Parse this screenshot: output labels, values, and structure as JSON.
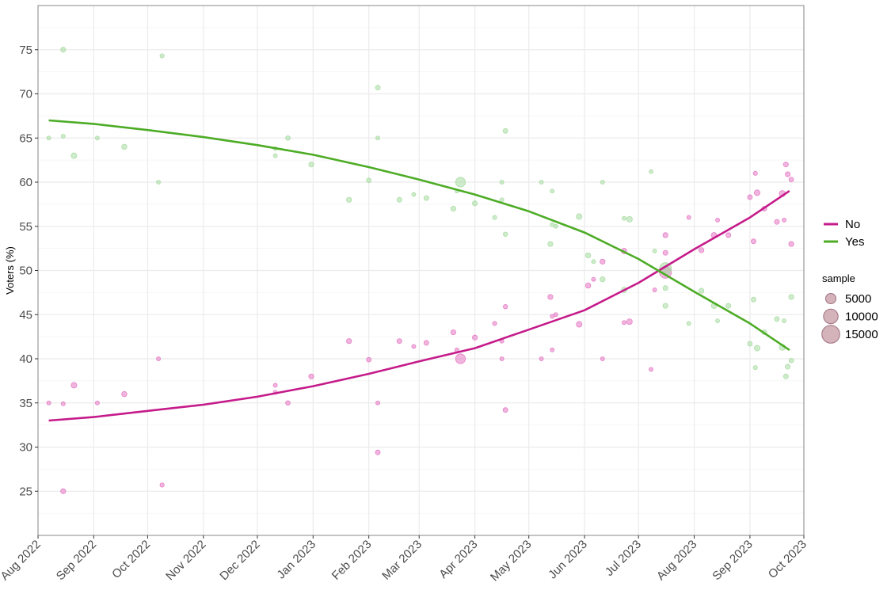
{
  "chart_data": {
    "type": "scatter",
    "ylabel": "Voters (%)",
    "xlabel": "",
    "ylim": [
      20,
      80
    ],
    "xlim": [
      "2022-08-01",
      "2023-10-01"
    ],
    "y_ticks": [
      25,
      30,
      35,
      40,
      45,
      50,
      55,
      60,
      65,
      70,
      75
    ],
    "x_ticks": [
      {
        "date": "2022-08-01",
        "label": "Aug 2022"
      },
      {
        "date": "2022-09-01",
        "label": "Sep 2022"
      },
      {
        "date": "2022-10-01",
        "label": "Oct 2022"
      },
      {
        "date": "2022-11-01",
        "label": "Nov 2022"
      },
      {
        "date": "2022-12-01",
        "label": "Dec 2022"
      },
      {
        "date": "2023-01-01",
        "label": "Jan 2023"
      },
      {
        "date": "2023-02-01",
        "label": "Feb 2023"
      },
      {
        "date": "2023-03-01",
        "label": "Mar 2023"
      },
      {
        "date": "2023-04-01",
        "label": "Apr 2023"
      },
      {
        "date": "2023-05-01",
        "label": "May 2023"
      },
      {
        "date": "2023-06-01",
        "label": "Jun 2023"
      },
      {
        "date": "2023-07-01",
        "label": "Jul 2023"
      },
      {
        "date": "2023-08-01",
        "label": "Aug 2023"
      },
      {
        "date": "2023-09-01",
        "label": "Sep 2023"
      },
      {
        "date": "2023-10-01",
        "label": "Oct 2023"
      }
    ],
    "grid": true,
    "legend_placement": "right",
    "series": [
      {
        "name": "No",
        "color": "#c51b8a",
        "point_color": "#e377c2",
        "trend": [
          [
            "2022-08-07",
            33.0
          ],
          [
            "2022-09-01",
            33.4
          ],
          [
            "2022-10-01",
            34.1
          ],
          [
            "2022-11-01",
            34.8
          ],
          [
            "2022-12-01",
            35.7
          ],
          [
            "2023-01-01",
            36.9
          ],
          [
            "2023-02-01",
            38.3
          ],
          [
            "2023-03-01",
            39.7
          ],
          [
            "2023-04-01",
            41.2
          ],
          [
            "2023-05-01",
            43.3
          ],
          [
            "2023-06-01",
            45.5
          ],
          [
            "2023-07-01",
            48.6
          ],
          [
            "2023-08-01",
            52.4
          ],
          [
            "2023-09-01",
            56.0
          ],
          [
            "2023-09-23",
            59.0
          ]
        ],
        "points": [
          {
            "x": "2022-08-07",
            "y": 35,
            "size": 1000
          },
          {
            "x": "2022-08-15",
            "y": 34.9,
            "size": 1000
          },
          {
            "x": "2022-08-15",
            "y": 25,
            "size": 1600
          },
          {
            "x": "2022-08-21",
            "y": 37,
            "size": 2000
          },
          {
            "x": "2022-09-03",
            "y": 35,
            "size": 1000
          },
          {
            "x": "2022-09-18",
            "y": 36,
            "size": 1700
          },
          {
            "x": "2022-10-07",
            "y": 40,
            "size": 1000
          },
          {
            "x": "2022-10-09",
            "y": 25.7,
            "size": 1100
          },
          {
            "x": "2022-12-11",
            "y": 37,
            "size": 1000
          },
          {
            "x": "2022-12-11",
            "y": 36.2,
            "size": 1000
          },
          {
            "x": "2022-12-18",
            "y": 35,
            "size": 1300
          },
          {
            "x": "2022-12-31",
            "y": 38,
            "size": 1600
          },
          {
            "x": "2023-01-21",
            "y": 42,
            "size": 1600
          },
          {
            "x": "2023-02-01",
            "y": 39.9,
            "size": 1400
          },
          {
            "x": "2023-02-06",
            "y": 35,
            "size": 1000
          },
          {
            "x": "2023-02-06",
            "y": 29.4,
            "size": 1400
          },
          {
            "x": "2023-02-18",
            "y": 42,
            "size": 1500
          },
          {
            "x": "2023-02-26",
            "y": 41.4,
            "size": 1000
          },
          {
            "x": "2023-03-05",
            "y": 41.8,
            "size": 1500
          },
          {
            "x": "2023-03-20",
            "y": 43,
            "size": 1600
          },
          {
            "x": "2023-03-22",
            "y": 41,
            "size": 1000
          },
          {
            "x": "2023-03-24",
            "y": 40,
            "size": 6000
          },
          {
            "x": "2023-04-01",
            "y": 42.4,
            "size": 1600
          },
          {
            "x": "2023-04-12",
            "y": 44,
            "size": 1100
          },
          {
            "x": "2023-04-16",
            "y": 40,
            "size": 1000
          },
          {
            "x": "2023-04-16",
            "y": 42,
            "size": 1000
          },
          {
            "x": "2023-04-18",
            "y": 45.9,
            "size": 1200
          },
          {
            "x": "2023-04-18",
            "y": 34.2,
            "size": 1400
          },
          {
            "x": "2023-05-08",
            "y": 40,
            "size": 1000
          },
          {
            "x": "2023-05-13",
            "y": 47,
            "size": 1600
          },
          {
            "x": "2023-05-14",
            "y": 44.8,
            "size": 1000
          },
          {
            "x": "2023-05-16",
            "y": 45,
            "size": 1000
          },
          {
            "x": "2023-05-14",
            "y": 41,
            "size": 1000
          },
          {
            "x": "2023-05-29",
            "y": 43.9,
            "size": 2000
          },
          {
            "x": "2023-06-03",
            "y": 48.3,
            "size": 1700
          },
          {
            "x": "2023-06-06",
            "y": 49,
            "size": 1000
          },
          {
            "x": "2023-06-11",
            "y": 51,
            "size": 1600
          },
          {
            "x": "2023-06-11",
            "y": 40,
            "size": 1000
          },
          {
            "x": "2023-06-23",
            "y": 52.2,
            "size": 1800
          },
          {
            "x": "2023-06-23",
            "y": 44.1,
            "size": 1000
          },
          {
            "x": "2023-06-26",
            "y": 44.2,
            "size": 2000
          },
          {
            "x": "2023-07-08",
            "y": 38.8,
            "size": 1000
          },
          {
            "x": "2023-07-10",
            "y": 47.8,
            "size": 1000
          },
          {
            "x": "2023-07-16",
            "y": 54,
            "size": 1600
          },
          {
            "x": "2023-07-16",
            "y": 52,
            "size": 1500
          },
          {
            "x": "2023-07-16",
            "y": 49.8,
            "size": 9000
          },
          {
            "x": "2023-07-29",
            "y": 56,
            "size": 1000
          },
          {
            "x": "2023-08-05",
            "y": 52.3,
            "size": 1600
          },
          {
            "x": "2023-08-12",
            "y": 54,
            "size": 1800
          },
          {
            "x": "2023-08-14",
            "y": 55.7,
            "size": 1000
          },
          {
            "x": "2023-08-20",
            "y": 54,
            "size": 1500
          },
          {
            "x": "2023-09-01",
            "y": 58.3,
            "size": 1400
          },
          {
            "x": "2023-09-03",
            "y": 53.3,
            "size": 1400
          },
          {
            "x": "2023-09-04",
            "y": 61,
            "size": 1100
          },
          {
            "x": "2023-09-05",
            "y": 58.8,
            "size": 2000
          },
          {
            "x": "2023-09-09",
            "y": 57,
            "size": 1500
          },
          {
            "x": "2023-09-16",
            "y": 55.5,
            "size": 1500
          },
          {
            "x": "2023-09-19",
            "y": 58.7,
            "size": 2300
          },
          {
            "x": "2023-09-20",
            "y": 55.7,
            "size": 1000
          },
          {
            "x": "2023-09-21",
            "y": 62,
            "size": 1500
          },
          {
            "x": "2023-09-22",
            "y": 60.9,
            "size": 1500
          },
          {
            "x": "2023-09-24",
            "y": 60.3,
            "size": 1300
          },
          {
            "x": "2023-09-24",
            "y": 53,
            "size": 1600
          }
        ]
      },
      {
        "name": "Yes",
        "color": "#4dac26",
        "point_color": "#a6dba0",
        "trend": [
          [
            "2022-08-07",
            67.0
          ],
          [
            "2022-09-01",
            66.6
          ],
          [
            "2022-10-01",
            65.9
          ],
          [
            "2022-11-01",
            65.1
          ],
          [
            "2022-12-01",
            64.2
          ],
          [
            "2023-01-01",
            63.1
          ],
          [
            "2023-02-01",
            61.7
          ],
          [
            "2023-03-01",
            60.3
          ],
          [
            "2023-04-01",
            58.6
          ],
          [
            "2023-05-01",
            56.7
          ],
          [
            "2023-06-01",
            54.3
          ],
          [
            "2023-07-01",
            51.3
          ],
          [
            "2023-08-01",
            47.6
          ],
          [
            "2023-09-01",
            44.0
          ],
          [
            "2023-09-23",
            41.0
          ]
        ],
        "points": [
          {
            "x": "2022-08-07",
            "y": 65,
            "size": 1000
          },
          {
            "x": "2022-08-15",
            "y": 65.2,
            "size": 1000
          },
          {
            "x": "2022-08-15",
            "y": 75,
            "size": 1600
          },
          {
            "x": "2022-08-21",
            "y": 63,
            "size": 2000
          },
          {
            "x": "2022-09-03",
            "y": 65,
            "size": 1000
          },
          {
            "x": "2022-09-18",
            "y": 64,
            "size": 1700
          },
          {
            "x": "2022-10-07",
            "y": 60,
            "size": 1000
          },
          {
            "x": "2022-10-09",
            "y": 74.3,
            "size": 1100
          },
          {
            "x": "2022-12-11",
            "y": 63.8,
            "size": 1000
          },
          {
            "x": "2022-12-11",
            "y": 63,
            "size": 1000
          },
          {
            "x": "2022-12-18",
            "y": 65,
            "size": 1300
          },
          {
            "x": "2022-12-31",
            "y": 62,
            "size": 1600
          },
          {
            "x": "2023-01-21",
            "y": 58,
            "size": 1600
          },
          {
            "x": "2023-02-01",
            "y": 60.2,
            "size": 1400
          },
          {
            "x": "2023-02-06",
            "y": 65,
            "size": 1000
          },
          {
            "x": "2023-02-06",
            "y": 70.7,
            "size": 1400
          },
          {
            "x": "2023-02-18",
            "y": 58,
            "size": 1500
          },
          {
            "x": "2023-02-26",
            "y": 58.6,
            "size": 1000
          },
          {
            "x": "2023-03-05",
            "y": 58.2,
            "size": 1500
          },
          {
            "x": "2023-03-20",
            "y": 57,
            "size": 1600
          },
          {
            "x": "2023-03-22",
            "y": 59,
            "size": 1000
          },
          {
            "x": "2023-03-24",
            "y": 60,
            "size": 6000
          },
          {
            "x": "2023-04-01",
            "y": 57.6,
            "size": 1600
          },
          {
            "x": "2023-04-12",
            "y": 56,
            "size": 1100
          },
          {
            "x": "2023-04-16",
            "y": 60,
            "size": 1000
          },
          {
            "x": "2023-04-16",
            "y": 58,
            "size": 1000
          },
          {
            "x": "2023-04-18",
            "y": 54.1,
            "size": 1200
          },
          {
            "x": "2023-04-18",
            "y": 65.8,
            "size": 1400
          },
          {
            "x": "2023-05-08",
            "y": 60,
            "size": 1000
          },
          {
            "x": "2023-05-13",
            "y": 53,
            "size": 1600
          },
          {
            "x": "2023-05-14",
            "y": 55.2,
            "size": 1000
          },
          {
            "x": "2023-05-16",
            "y": 55,
            "size": 1000
          },
          {
            "x": "2023-05-14",
            "y": 59,
            "size": 1000
          },
          {
            "x": "2023-05-29",
            "y": 56.1,
            "size": 2000
          },
          {
            "x": "2023-06-03",
            "y": 51.7,
            "size": 1700
          },
          {
            "x": "2023-06-06",
            "y": 51,
            "size": 1000
          },
          {
            "x": "2023-06-11",
            "y": 49,
            "size": 1600
          },
          {
            "x": "2023-06-11",
            "y": 60,
            "size": 1000
          },
          {
            "x": "2023-06-23",
            "y": 47.8,
            "size": 1800
          },
          {
            "x": "2023-06-23",
            "y": 55.9,
            "size": 1000
          },
          {
            "x": "2023-06-26",
            "y": 55.8,
            "size": 2000
          },
          {
            "x": "2023-07-08",
            "y": 61.2,
            "size": 1000
          },
          {
            "x": "2023-07-10",
            "y": 52.2,
            "size": 1000
          },
          {
            "x": "2023-07-16",
            "y": 46,
            "size": 1600
          },
          {
            "x": "2023-07-16",
            "y": 48,
            "size": 1500
          },
          {
            "x": "2023-07-16",
            "y": 50.2,
            "size": 9000
          },
          {
            "x": "2023-07-29",
            "y": 44,
            "size": 1000
          },
          {
            "x": "2023-08-05",
            "y": 47.7,
            "size": 1600
          },
          {
            "x": "2023-08-12",
            "y": 46,
            "size": 1800
          },
          {
            "x": "2023-08-14",
            "y": 44.3,
            "size": 1000
          },
          {
            "x": "2023-08-20",
            "y": 46,
            "size": 1500
          },
          {
            "x": "2023-09-01",
            "y": 41.7,
            "size": 1400
          },
          {
            "x": "2023-09-03",
            "y": 46.7,
            "size": 1400
          },
          {
            "x": "2023-09-04",
            "y": 39,
            "size": 1100
          },
          {
            "x": "2023-09-05",
            "y": 41.2,
            "size": 2000
          },
          {
            "x": "2023-09-09",
            "y": 43,
            "size": 1500
          },
          {
            "x": "2023-09-16",
            "y": 44.5,
            "size": 1500
          },
          {
            "x": "2023-09-19",
            "y": 41.3,
            "size": 2300
          },
          {
            "x": "2023-09-20",
            "y": 44.3,
            "size": 1000
          },
          {
            "x": "2023-09-21",
            "y": 38,
            "size": 1500
          },
          {
            "x": "2023-09-22",
            "y": 39.1,
            "size": 1500
          },
          {
            "x": "2023-09-24",
            "y": 39.8,
            "size": 1300
          },
          {
            "x": "2023-09-24",
            "y": 47,
            "size": 1600
          }
        ]
      }
    ],
    "legend": {
      "series_entries": [
        "No",
        "Yes"
      ],
      "size_title": "sample",
      "size_entries": [
        {
          "label": "5000",
          "value": 5000
        },
        {
          "label": "10000",
          "value": 10000
        },
        {
          "label": "15000",
          "value": 15000
        }
      ],
      "size_swatch_color": "#c9a0aa"
    },
    "colors": {
      "panel_border": "#888888",
      "grid": "#ebebeb",
      "tick_label": "#4d4d4d"
    }
  }
}
